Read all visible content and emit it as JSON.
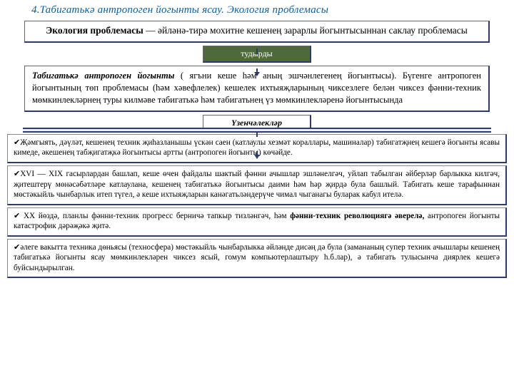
{
  "title": "4.Табигатькә антропоген йогынты ясау. Экология проблемасы",
  "box1_bold": "Экология проблемасы",
  "box1_rest": " — әйләнә-тирә мохитне кешенең зарарлы йогынтысыннан саклау проблемасы",
  "pill1": "тудырды",
  "box2_bold": "Табигатькә антропоген йогынты",
  "box2_rest": " ( ягъни кеше һәм аның эшчәнлегенең йогынтысы). Бүгенге  антропоген  йогынтының  төп  проблемасы (һәм  хәвефлелек)  кешелек ихтыяҗларының  чиксезлеге  белән  чиксез  фәнни-техник  мөмкинлекләрнең  туры килмәве табигатькә һәм табигатьнең үз мөмкинлекләренә йогынтысында",
  "pill2": "Үзенчәлекләр",
  "items": [
    "Җәмгыять, дәүләт, кешенең техник җиһазланышы үскән саен (катлаулы хезмәт кораллары, машиналар) табигатҗнең кешегә йогынты ясавы кимеде, әкешенең табҗигатҗкә йогынтысы артты (антропоген йогынты) көчәйде.",
    "XVI — XIX гасырлардан башлап, кеше өчен файдалы шактый фәнни ачышлар эшләнелгәч, уйлап табылган әйберләр барлыкка килгәч, җитештерү мөнәсәбәтләре катлаулана, кешенең табигатькә йогынтысы даими һәм һәр җирдә була башлый. Табигать кеше тарафыннан мөстәкыйль чынбарлык итеп түгел, ә кеше ихтыяҗларын канәгатьләндерүче чимал чыганагы буларак кабул ителә.",
    " XX йөздә, планлы фәнни-техник прогресс берничә тапкыр тизләнгәч, һәм <b>фәнни-техник революциягә әверелә,</b> антропоген йогынты катастрофик дәрәҗәкә җитә.",
    "әлеге вакытта техника дөньясы (техносфера) мөстәкыйль чынбарлыкка әйләнде дисәң дә була (замананың супер техник ачышлары кешенең табигатькә йогынты ясау мөмкинлекләрен чиксез ясый, гомум компьютерлаштыру һ.б.лар), ә табигать тулысынча диярлек кешегә буйсындырылган."
  ]
}
